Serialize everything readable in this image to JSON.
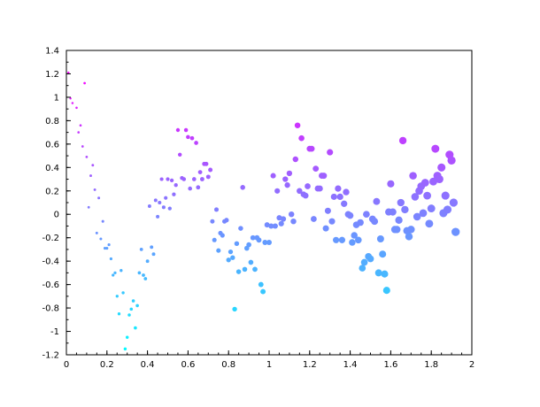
{
  "chart_data": {
    "type": "scatter",
    "title": "",
    "xlabel": "",
    "ylabel": "",
    "xlim": [
      0,
      2
    ],
    "ylim": [
      -1.2,
      1.4
    ],
    "grid": false,
    "x_ticks": [
      "0",
      "0.2",
      "0.4",
      "0.6",
      "0.8",
      "1",
      "1.2",
      "1.4",
      "1.6",
      "1.8",
      "2"
    ],
    "y_ticks": [
      "1.4",
      "1.2",
      "1",
      "0.8",
      "0.6",
      "0.4",
      "0.2",
      "0",
      "-0.2",
      "-0.4",
      "-0.6",
      "-0.8",
      "-1",
      "-1.2"
    ],
    "colormap": {
      "low": "#00ffff",
      "high": "#ff00ff"
    },
    "marker_size": "grows with x",
    "series": [
      {
        "points": [
          [
            0.01,
            1.21
          ],
          [
            0.02,
            0.99
          ],
          [
            0.03,
            0.95
          ],
          [
            0.05,
            0.91
          ],
          [
            0.06,
            0.7
          ],
          [
            0.07,
            0.76
          ],
          [
            0.08,
            0.58
          ],
          [
            0.09,
            1.12
          ],
          [
            0.1,
            0.49
          ],
          [
            0.11,
            0.06
          ],
          [
            0.12,
            0.33
          ],
          [
            0.13,
            0.42
          ],
          [
            0.14,
            0.21
          ],
          [
            0.15,
            -0.16
          ],
          [
            0.16,
            0.14
          ],
          [
            0.17,
            -0.21
          ],
          [
            0.18,
            -0.06
          ],
          [
            0.19,
            -0.29
          ],
          [
            0.2,
            -0.29
          ],
          [
            0.21,
            -0.26
          ],
          [
            0.22,
            -0.38
          ],
          [
            0.23,
            -0.52
          ],
          [
            0.24,
            -0.5
          ],
          [
            0.25,
            -0.7
          ],
          [
            0.26,
            -0.85
          ],
          [
            0.27,
            -0.48
          ],
          [
            0.28,
            -0.67
          ],
          [
            0.29,
            -1.15
          ],
          [
            0.3,
            -1.05
          ],
          [
            0.31,
            -0.86
          ],
          [
            0.32,
            -0.81
          ],
          [
            0.33,
            -0.74
          ],
          [
            0.34,
            -0.97
          ],
          [
            0.35,
            -0.78
          ],
          [
            0.36,
            -0.5
          ],
          [
            0.37,
            -0.3
          ],
          [
            0.38,
            -0.52
          ],
          [
            0.39,
            -0.55
          ],
          [
            0.4,
            -0.4
          ],
          [
            0.41,
            0.07
          ],
          [
            0.42,
            -0.28
          ],
          [
            0.43,
            -0.34
          ],
          [
            0.44,
            0.12
          ],
          [
            0.45,
            -0.02
          ],
          [
            0.46,
            0.1
          ],
          [
            0.47,
            0.3
          ],
          [
            0.48,
            0.06
          ],
          [
            0.49,
            0.14
          ],
          [
            0.5,
            0.3
          ],
          [
            0.51,
            0.05
          ],
          [
            0.52,
            0.29
          ],
          [
            0.53,
            0.17
          ],
          [
            0.54,
            0.25
          ],
          [
            0.55,
            0.72
          ],
          [
            0.56,
            0.51
          ],
          [
            0.57,
            0.31
          ],
          [
            0.58,
            0.3
          ],
          [
            0.59,
            0.72
          ],
          [
            0.6,
            0.66
          ],
          [
            0.61,
            0.22
          ],
          [
            0.62,
            0.65
          ],
          [
            0.63,
            0.3
          ],
          [
            0.64,
            0.61
          ],
          [
            0.65,
            0.23
          ],
          [
            0.66,
            0.36
          ],
          [
            0.67,
            0.3
          ],
          [
            0.68,
            0.43
          ],
          [
            0.69,
            0.43
          ],
          [
            0.7,
            0.32
          ],
          [
            0.71,
            0.38
          ],
          [
            0.72,
            -0.06
          ],
          [
            0.73,
            -0.22
          ],
          [
            0.74,
            0.04
          ],
          [
            0.75,
            -0.31
          ],
          [
            0.76,
            -0.16
          ],
          [
            0.77,
            -0.18
          ],
          [
            0.78,
            -0.06
          ],
          [
            0.79,
            -0.05
          ],
          [
            0.8,
            -0.39
          ],
          [
            0.81,
            -0.32
          ],
          [
            0.82,
            -0.37
          ],
          [
            0.83,
            -0.81
          ],
          [
            0.84,
            -0.25
          ],
          [
            0.85,
            -0.49
          ],
          [
            0.86,
            -0.12
          ],
          [
            0.87,
            0.23
          ],
          [
            0.88,
            -0.47
          ],
          [
            0.89,
            -0.29
          ],
          [
            0.9,
            -0.26
          ],
          [
            0.91,
            -0.41
          ],
          [
            0.92,
            -0.2
          ],
          [
            0.93,
            -0.47
          ],
          [
            0.94,
            -0.2
          ],
          [
            0.95,
            -0.22
          ],
          [
            0.96,
            -0.6
          ],
          [
            0.97,
            -0.66
          ],
          [
            0.98,
            -0.24
          ],
          [
            0.99,
            -0.09
          ],
          [
            1.0,
            -0.24
          ],
          [
            1.01,
            -0.1
          ],
          [
            1.02,
            0.33
          ],
          [
            1.03,
            -0.1
          ],
          [
            1.04,
            0.2
          ],
          [
            1.05,
            -0.03
          ],
          [
            1.06,
            -0.08
          ],
          [
            1.07,
            -0.04
          ],
          [
            1.08,
            0.3
          ],
          [
            1.09,
            0.25
          ],
          [
            1.1,
            0.35
          ],
          [
            1.11,
            0.0
          ],
          [
            1.12,
            -0.06
          ],
          [
            1.13,
            0.47
          ],
          [
            1.14,
            0.76
          ],
          [
            1.15,
            0.2
          ],
          [
            1.16,
            0.65
          ],
          [
            1.17,
            0.17
          ],
          [
            1.18,
            0.16
          ],
          [
            1.19,
            0.24
          ],
          [
            1.2,
            0.56
          ],
          [
            1.21,
            0.56
          ],
          [
            1.22,
            -0.04
          ],
          [
            1.23,
            0.39
          ],
          [
            1.24,
            0.22
          ],
          [
            1.25,
            0.22
          ],
          [
            1.26,
            0.33
          ],
          [
            1.27,
            0.33
          ],
          [
            1.28,
            -0.12
          ],
          [
            1.29,
            0.03
          ],
          [
            1.3,
            0.53
          ],
          [
            1.31,
            -0.06
          ],
          [
            1.32,
            0.15
          ],
          [
            1.33,
            -0.22
          ],
          [
            1.34,
            0.22
          ],
          [
            1.35,
            0.15
          ],
          [
            1.36,
            -0.22
          ],
          [
            1.37,
            0.09
          ],
          [
            1.38,
            0.19
          ],
          [
            1.39,
            0.0
          ],
          [
            1.4,
            -0.01
          ],
          [
            1.41,
            -0.24
          ],
          [
            1.42,
            -0.18
          ],
          [
            1.43,
            -0.09
          ],
          [
            1.44,
            -0.22
          ],
          [
            1.45,
            -0.07
          ],
          [
            1.46,
            -0.46
          ],
          [
            1.47,
            -0.41
          ],
          [
            1.48,
            0.0
          ],
          [
            1.49,
            -0.36
          ],
          [
            1.5,
            -0.38
          ],
          [
            1.51,
            -0.04
          ],
          [
            1.52,
            -0.06
          ],
          [
            1.53,
            0.11
          ],
          [
            1.54,
            -0.5
          ],
          [
            1.55,
            -0.21
          ],
          [
            1.56,
            -0.34
          ],
          [
            1.57,
            -0.51
          ],
          [
            1.58,
            -0.65
          ],
          [
            1.59,
            0.02
          ],
          [
            1.6,
            0.26
          ],
          [
            1.61,
            0.02
          ],
          [
            1.62,
            -0.13
          ],
          [
            1.63,
            -0.13
          ],
          [
            1.64,
            -0.05
          ],
          [
            1.65,
            0.1
          ],
          [
            1.66,
            0.63
          ],
          [
            1.67,
            0.04
          ],
          [
            1.68,
            -0.14
          ],
          [
            1.69,
            -0.19
          ],
          [
            1.7,
            -0.13
          ],
          [
            1.71,
            0.33
          ],
          [
            1.72,
            0.15
          ],
          [
            1.73,
            -0.02
          ],
          [
            1.74,
            0.2
          ],
          [
            1.75,
            0.24
          ],
          [
            1.76,
            0.01
          ],
          [
            1.77,
            0.27
          ],
          [
            1.78,
            0.16
          ],
          [
            1.79,
            -0.08
          ],
          [
            1.8,
            0.05
          ],
          [
            1.81,
            0.28
          ],
          [
            1.82,
            0.56
          ],
          [
            1.83,
            0.33
          ],
          [
            1.84,
            0.3
          ],
          [
            1.85,
            0.4
          ],
          [
            1.86,
            0.01
          ],
          [
            1.87,
            0.16
          ],
          [
            1.88,
            0.04
          ],
          [
            1.89,
            0.51
          ],
          [
            1.9,
            0.46
          ],
          [
            1.91,
            0.1
          ],
          [
            1.92,
            -0.15
          ]
        ]
      }
    ]
  }
}
